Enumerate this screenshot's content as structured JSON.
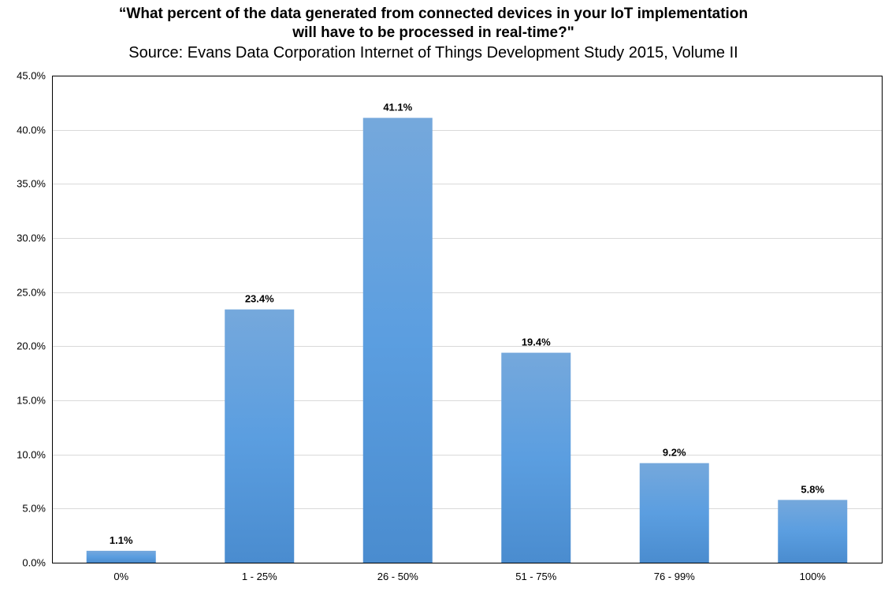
{
  "chart_data": {
    "type": "bar",
    "title_lines": [
      "“What percent of the data generated from connected devices in your IoT implementation",
      "will have to be processed in real-time?\""
    ],
    "subtitle": "Source: Evans Data Corporation Internet of Things Development Study 2015, Volume II",
    "xlabel": "",
    "ylabel": "",
    "categories": [
      "0%",
      "1 - 25%",
      "26 - 50%",
      "51 - 75%",
      "76 - 99%",
      "100%"
    ],
    "values": [
      1.1,
      23.4,
      41.1,
      19.4,
      9.2,
      5.8
    ],
    "data_labels": [
      "1.1%",
      "23.4%",
      "41.1%",
      "19.4%",
      "9.2%",
      "5.8%"
    ],
    "ylim": [
      0,
      45
    ],
    "yticks": [
      0,
      5,
      10,
      15,
      20,
      25,
      30,
      35,
      40,
      45
    ],
    "ytick_labels": [
      "0.0%",
      "5.0%",
      "10.0%",
      "15.0%",
      "20.0%",
      "25.0%",
      "30.0%",
      "35.0%",
      "40.0%",
      "45.0%"
    ],
    "grid": true,
    "legend": "none",
    "colors": {
      "bar_top": "#75a8dc",
      "bar_mid": "#5b9ee0",
      "bar_bottom": "#4a8ccf",
      "grid": "#d9d9d9",
      "frame": "#000000"
    }
  }
}
